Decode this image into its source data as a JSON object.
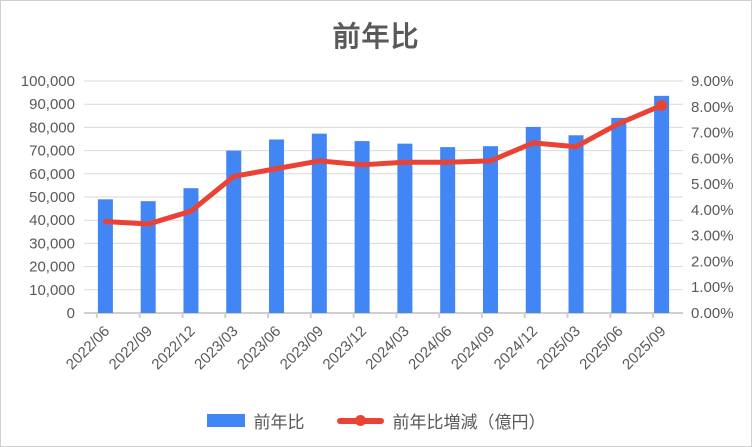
{
  "chart_data": {
    "type": "combo",
    "title": "前年比",
    "grid": true,
    "legend_position": "bottom",
    "categories": [
      "2022/06",
      "2022/09",
      "2022/12",
      "2023/03",
      "2023/06",
      "2023/09",
      "2023/12",
      "2024/03",
      "2024/06",
      "2024/09",
      "2024/12",
      "2025/03",
      "2025/06",
      "2025/09"
    ],
    "series": [
      {
        "name": "前年比",
        "type": "bar",
        "axis": "left",
        "color": "#4285F4",
        "values": [
          49000,
          48200,
          53800,
          70000,
          74800,
          77300,
          74100,
          73000,
          71500,
          71900,
          80200,
          76600,
          84100,
          93600
        ]
      },
      {
        "name": "前年比増減（億円）",
        "type": "line",
        "axis": "right",
        "color": "#EA4335",
        "values": [
          3.55,
          3.45,
          3.95,
          5.3,
          5.6,
          5.9,
          5.75,
          5.85,
          5.85,
          5.9,
          6.6,
          6.45,
          7.35,
          8.05
        ]
      }
    ],
    "left_axis": {
      "min": 0,
      "max": 100000,
      "step": 10000,
      "tick_labels": [
        "100,000",
        "90,000",
        "80,000",
        "70,000",
        "60,000",
        "50,000",
        "40,000",
        "30,000",
        "20,000",
        "10,000",
        "0"
      ]
    },
    "right_axis": {
      "min": 0,
      "max": 9,
      "step": 1,
      "tick_labels": [
        "9.00%",
        "8.00%",
        "7.00%",
        "6.00%",
        "5.00%",
        "4.00%",
        "3.00%",
        "2.00%",
        "1.00%",
        "0.00%"
      ]
    },
    "colors": {
      "grid": "#dadada",
      "axis_line": "#cfcfcf",
      "text": "#595959"
    }
  }
}
